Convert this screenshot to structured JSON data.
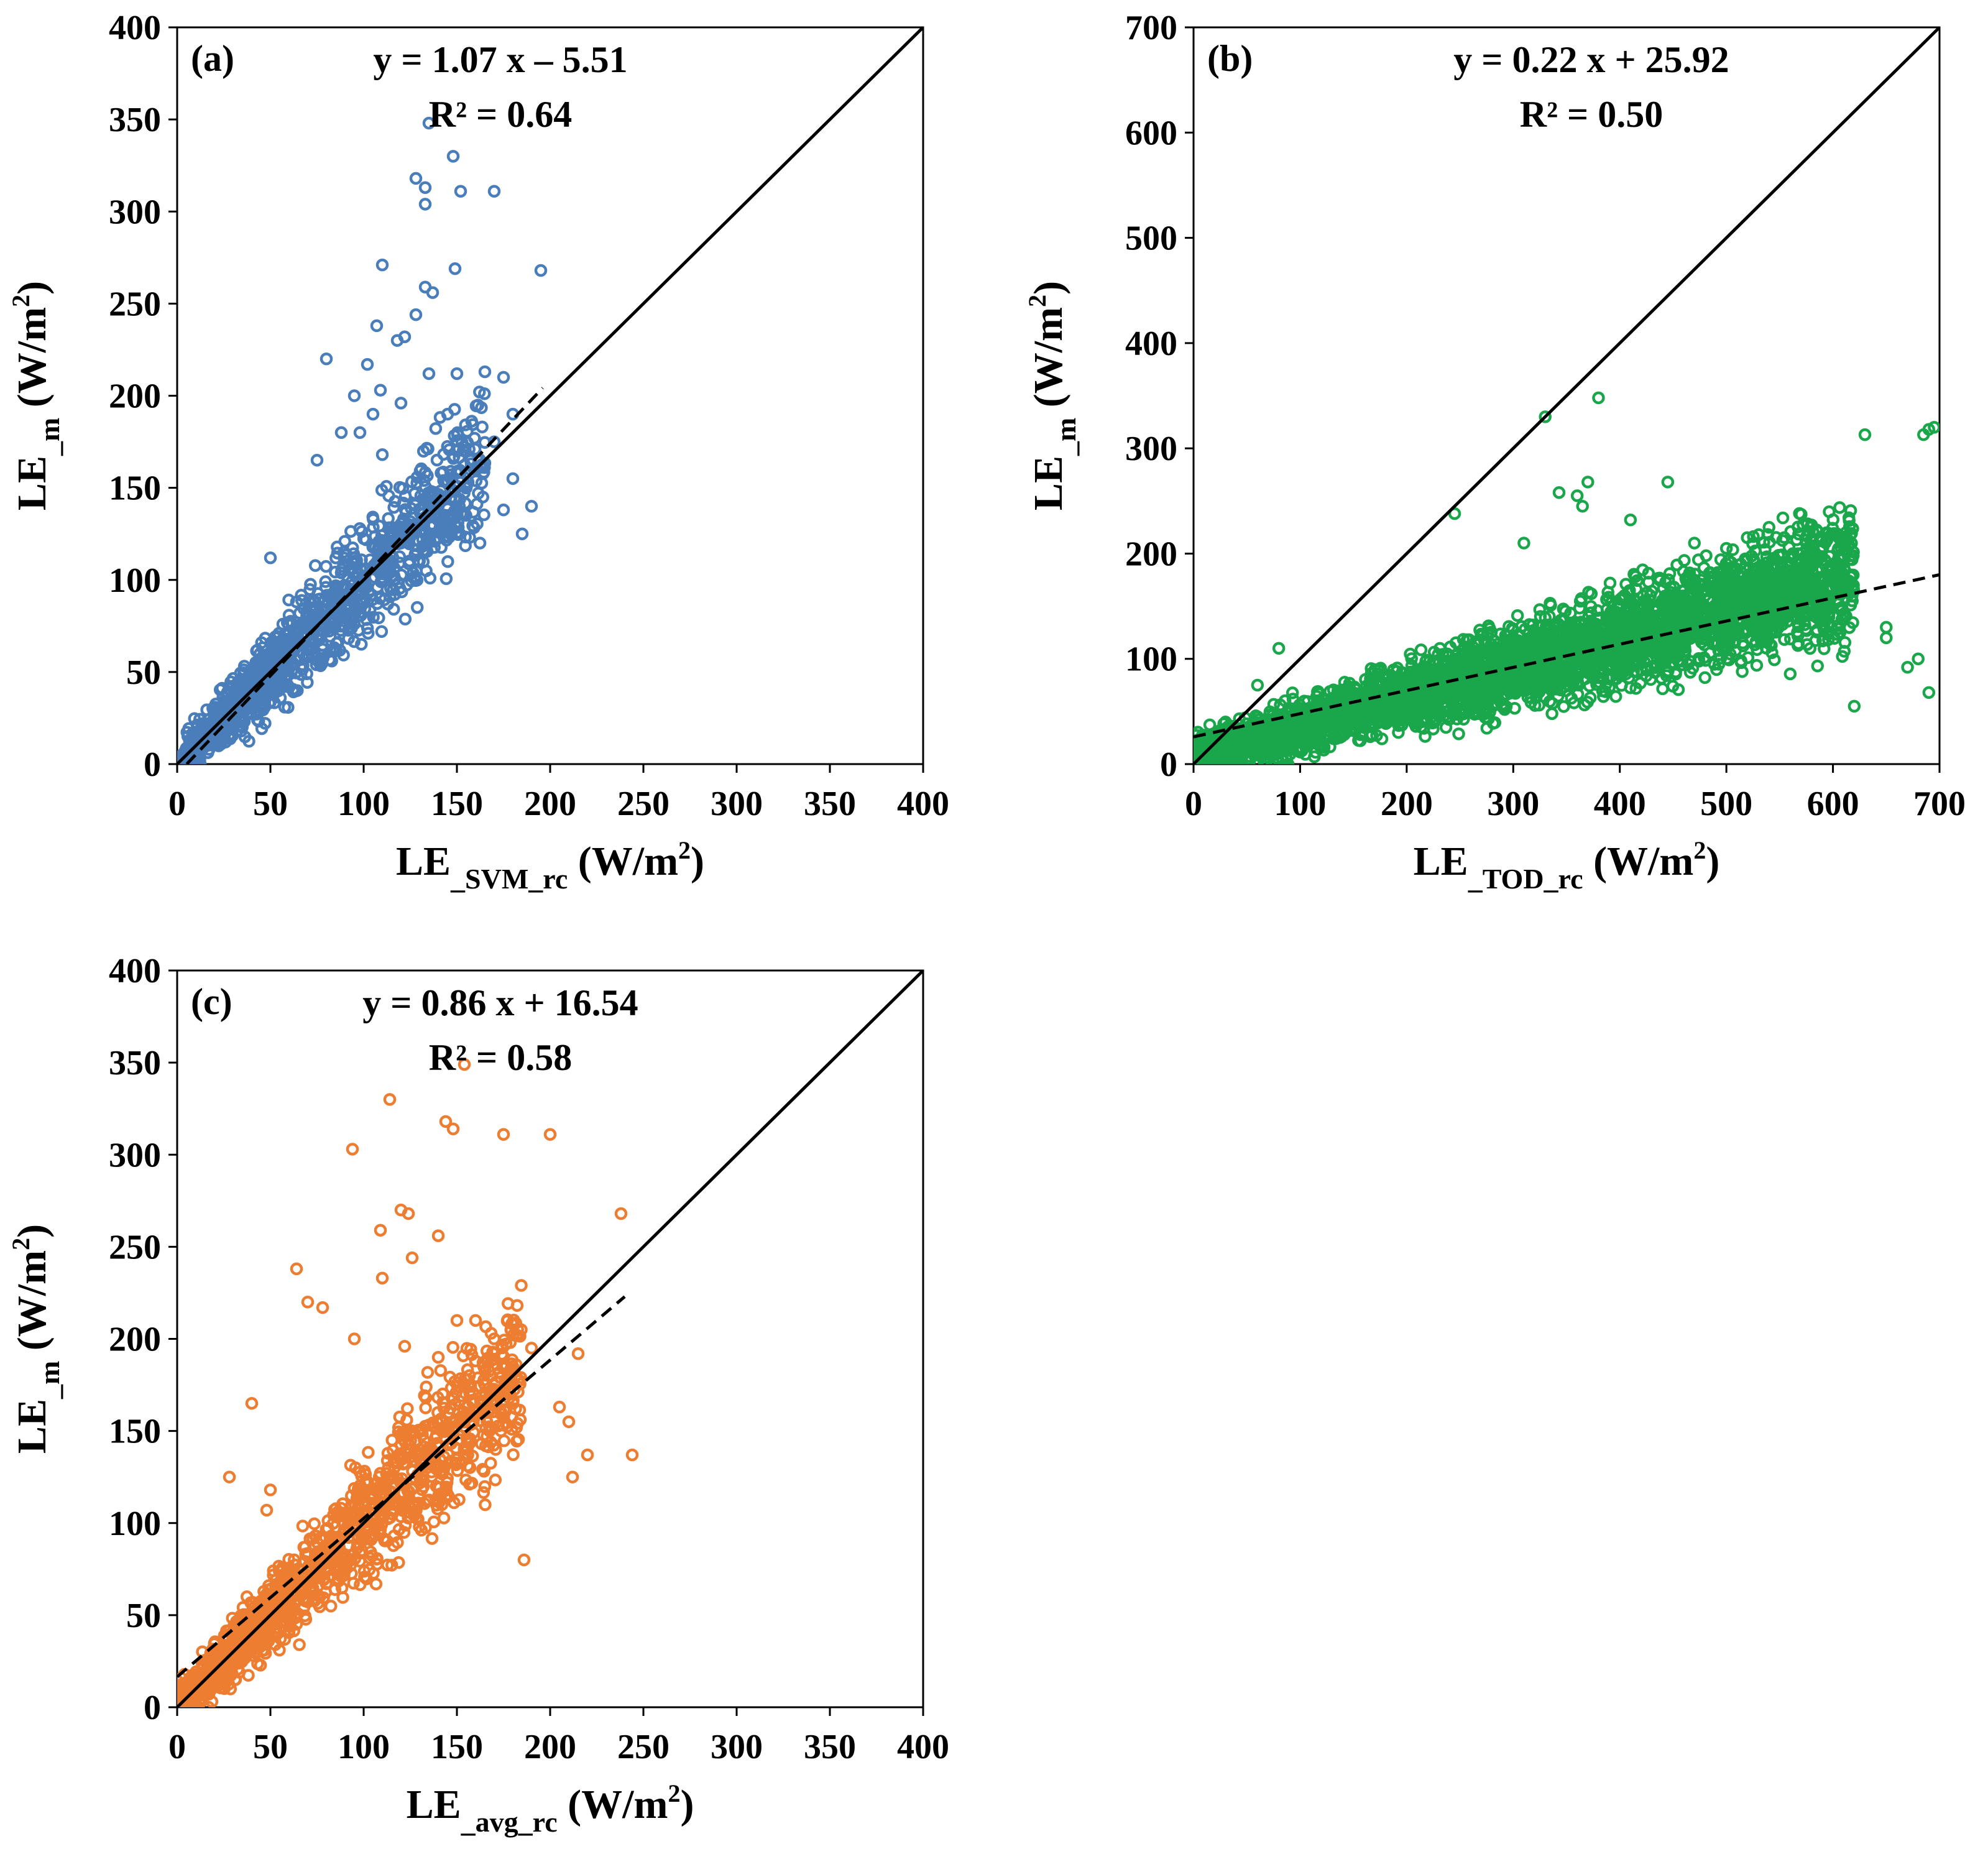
{
  "chart_data": [
    {
      "type": "scatter",
      "panel_label": "(a)",
      "equation": "y = 1.07 x – 5.51",
      "r2": "R² = 0.64",
      "xlabel": {
        "main": "LE",
        "sub": "_SVM_rc",
        "unit_pre": " (W/m",
        "unit_sup": "2",
        "unit_post": ")"
      },
      "ylabel": {
        "main": "LE",
        "sub": "_m",
        "unit_pre": " (W/m",
        "unit_sup": "2",
        "unit_post": ")"
      },
      "xlim": [
        0,
        400
      ],
      "ylim": [
        0,
        400
      ],
      "xticks": [
        0,
        50,
        100,
        150,
        200,
        250,
        300,
        350,
        400
      ],
      "yticks": [
        0,
        50,
        100,
        150,
        200,
        250,
        300,
        350,
        400
      ],
      "color": "#4a7ebb",
      "fit": {
        "slope": 1.07,
        "intercept": -5.51,
        "x_range": [
          0,
          196
        ]
      },
      "identity_line": true,
      "series": [
        {
          "name": "LE_m vs LE_SVM_rc",
          "points": [
            [
              135,
              348
            ],
            [
              148,
              330
            ],
            [
              128,
              318
            ],
            [
              133,
              313
            ],
            [
              152,
              311
            ],
            [
              170,
              311
            ],
            [
              133,
              304
            ],
            [
              195,
              268
            ],
            [
              110,
              271
            ],
            [
              149,
              269
            ],
            [
              133,
              259
            ],
            [
              137,
              256
            ],
            [
              128,
              244
            ],
            [
              107,
              238
            ],
            [
              122,
              232
            ],
            [
              118,
              230
            ],
            [
              80,
              220
            ],
            [
              102,
              217
            ],
            [
              150,
              212
            ],
            [
              165,
              213
            ],
            [
              175,
              210
            ],
            [
              135,
              212
            ],
            [
              109,
              203
            ],
            [
              95,
              200
            ],
            [
              120,
              196
            ],
            [
              145,
              190
            ],
            [
              105,
              190
            ],
            [
              180,
              190
            ],
            [
              88,
              180
            ],
            [
              98,
              180
            ],
            [
              170,
              175
            ],
            [
              75,
              165
            ],
            [
              110,
              168
            ],
            [
              150,
              170
            ],
            [
              180,
              155
            ],
            [
              190,
              140
            ],
            [
              175,
              138
            ],
            [
              50,
              112
            ],
            [
              185,
              125
            ],
            [
              160,
              160
            ],
            [
              155,
              150
            ],
            [
              145,
              135
            ],
            [
              120,
              120
            ],
            [
              140,
              140
            ],
            [
              130,
              130
            ],
            [
              100,
              100
            ],
            [
              90,
              90
            ],
            [
              80,
              80
            ],
            [
              70,
              70
            ],
            [
              60,
              60
            ],
            [
              50,
              50
            ],
            [
              40,
              40
            ],
            [
              30,
              30
            ],
            [
              20,
              20
            ],
            [
              10,
              10
            ],
            [
              5,
              5
            ],
            [
              2,
              2
            ]
          ]
        }
      ],
      "cloud": [
        {
          "xmin": 5,
          "xmax": 165,
          "spread": 32
        },
        {
          "xmin": 0,
          "xmax": 60,
          "spread": 12
        }
      ]
    },
    {
      "type": "scatter",
      "panel_label": "(b)",
      "equation": "y = 0.22 x + 25.92",
      "r2": "R² = 0.50",
      "xlabel": {
        "main": "LE",
        "sub": "_TOD_rc",
        "unit_pre": " (W/m",
        "unit_sup": "2",
        "unit_post": ")"
      },
      "ylabel": {
        "main": "LE",
        "sub": "_m",
        "unit_pre": " (W/m",
        "unit_sup": "2",
        "unit_post": ")"
      },
      "xlim": [
        0,
        700
      ],
      "ylim": [
        0,
        700
      ],
      "xticks": [
        0,
        100,
        200,
        300,
        400,
        500,
        600,
        700
      ],
      "yticks": [
        0,
        100,
        200,
        300,
        400,
        500,
        600,
        700
      ],
      "color": "#1aa64a",
      "fit": {
        "slope": 0.22,
        "intercept": 25.92,
        "x_range": [
          0,
          700
        ]
      },
      "identity_line": true,
      "series": [
        {
          "name": "LE_m vs LE_TOD_rc",
          "points": [
            [
              380,
              348
            ],
            [
              330,
              330
            ],
            [
              343,
              258
            ],
            [
              245,
              238
            ],
            [
              370,
              268
            ],
            [
              445,
              268
            ],
            [
              360,
              255
            ],
            [
              365,
              245
            ],
            [
              410,
              232
            ],
            [
              310,
              210
            ],
            [
              540,
              225
            ],
            [
              470,
              210
            ],
            [
              500,
              205
            ],
            [
              560,
              190
            ],
            [
              630,
              313
            ],
            [
              690,
              318
            ],
            [
              695,
              320
            ],
            [
              685,
              313
            ],
            [
              600,
              160
            ],
            [
              650,
              120
            ],
            [
              680,
              100
            ],
            [
              670,
              92
            ],
            [
              620,
              55
            ],
            [
              690,
              68
            ],
            [
              650,
              130
            ],
            [
              560,
              170
            ],
            [
              520,
              175
            ],
            [
              480,
              160
            ],
            [
              420,
              140
            ],
            [
              380,
              110
            ],
            [
              300,
              120
            ],
            [
              250,
              100
            ],
            [
              200,
              80
            ],
            [
              150,
              60
            ],
            [
              100,
              50
            ],
            [
              80,
              110
            ],
            [
              60,
              75
            ],
            [
              30,
              40
            ],
            [
              20,
              20
            ],
            [
              10,
              10
            ],
            [
              5,
              5
            ]
          ]
        }
      ],
      "cloud": [
        {
          "xmin": 0,
          "xmax": 620,
          "spread": 45
        }
      ]
    },
    {
      "type": "scatter",
      "panel_label": "(c)",
      "equation": "y = 0.86 x + 16.54",
      "r2": "R² = 0.58",
      "xlabel": {
        "main": "LE",
        "sub": "_avg_rc",
        "unit_pre": " (W/m",
        "unit_sup": "2",
        "unit_post": ")"
      },
      "ylabel": {
        "main": "LE",
        "sub": "_m",
        "unit_pre": " (W/m",
        "unit_sup": "2",
        "unit_post": ")"
      },
      "xlim": [
        0,
        400
      ],
      "ylim": [
        0,
        400
      ],
      "xticks": [
        0,
        50,
        100,
        150,
        200,
        250,
        300,
        350,
        400
      ],
      "yticks": [
        0,
        50,
        100,
        150,
        200,
        250,
        300,
        350,
        400
      ],
      "color": "#ed7d31",
      "fit": {
        "slope": 0.86,
        "intercept": 16.54,
        "x_range": [
          0,
          240
        ]
      },
      "identity_line": true,
      "series": [
        {
          "name": "LE_m vs LE_avg_rc",
          "points": [
            [
              154,
              349
            ],
            [
              114,
              330
            ],
            [
              144,
              318
            ],
            [
              148,
              314
            ],
            [
              175,
              311
            ],
            [
              200,
              311
            ],
            [
              94,
              303
            ],
            [
              238,
              268
            ],
            [
              120,
              270
            ],
            [
              124,
              268
            ],
            [
              109,
              259
            ],
            [
              140,
              256
            ],
            [
              110,
              233
            ],
            [
              64,
              238
            ],
            [
              126,
              244
            ],
            [
              70,
              220
            ],
            [
              78,
              217
            ],
            [
              95,
              200
            ],
            [
              122,
              196
            ],
            [
              190,
              195
            ],
            [
              215,
              192
            ],
            [
              140,
              190
            ],
            [
              160,
              188
            ],
            [
              180,
              185
            ],
            [
              205,
              163
            ],
            [
              210,
              155
            ],
            [
              212,
              125
            ],
            [
              220,
              137
            ],
            [
              244,
              137
            ],
            [
              186,
              80
            ],
            [
              40,
              165
            ],
            [
              28,
              125
            ],
            [
              48,
              107
            ],
            [
              50,
              118
            ],
            [
              160,
              210
            ],
            [
              150,
              210
            ],
            [
              170,
              200
            ],
            [
              165,
              175
            ],
            [
              130,
              140
            ],
            [
              110,
              110
            ],
            [
              90,
              95
            ],
            [
              70,
              75
            ],
            [
              50,
              55
            ],
            [
              30,
              35
            ],
            [
              20,
              25
            ],
            [
              10,
              15
            ],
            [
              5,
              8
            ],
            [
              2,
              3
            ]
          ]
        }
      ],
      "cloud": [
        {
          "xmin": 2,
          "xmax": 185,
          "spread": 34
        },
        {
          "xmin": 0,
          "xmax": 60,
          "spread": 14
        }
      ]
    }
  ]
}
